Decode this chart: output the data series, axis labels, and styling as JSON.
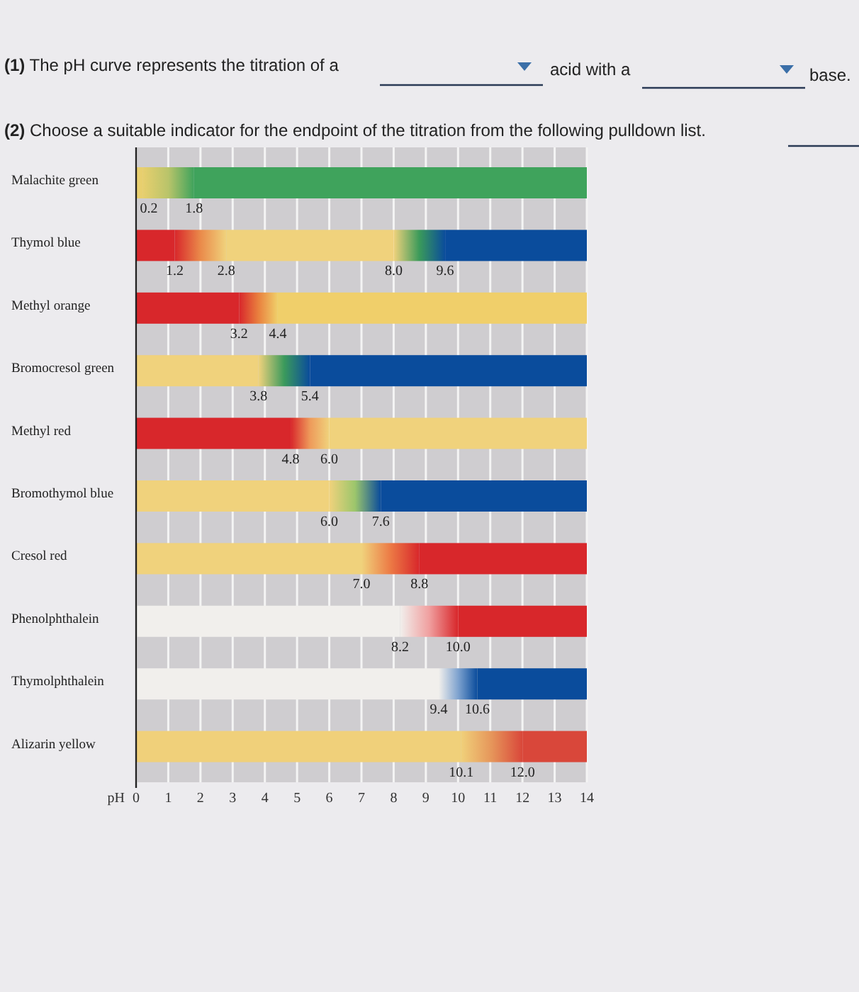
{
  "chart_data": {
    "type": "bar",
    "orientation": "horizontal",
    "stacked": true,
    "categories": [
      "Malachite green",
      "Thymol blue",
      "Methyl orange",
      "Bromocresol green",
      "Methyl red",
      "Bromothymol blue",
      "Cresol red",
      "Phenolphthalein",
      "Thymolphthalein",
      "Alizarin yellow"
    ],
    "series": [
      {
        "values": [
          0.2,
          1.2,
          3.2,
          3.8,
          4.8,
          6.0,
          7.0,
          8.2,
          9.4,
          10.1
        ],
        "colors": [
          "#e8cf6e",
          "#d8272b",
          "#d8272b",
          "#f0d27c",
          "#d8272b",
          "#f0d27c",
          "#f0d27c",
          "#f1efec",
          "#f1efec",
          "#f0d07a"
        ]
      },
      {
        "values": [
          1.6,
          1.6,
          1.2,
          1.6,
          1.2,
          1.6,
          1.8,
          1.8,
          1.2,
          1.9
        ],
        "colors": [
          "#b9c46a",
          "#ea8a4a",
          "#e9803e",
          "#3b9a5c",
          "#ee9a5a",
          "#9cc66c",
          "#ec7a45",
          "#f0a0a0",
          "#7fa3cf",
          "#e6955a"
        ]
      },
      {
        "values": [
          12.2,
          5.2,
          9.6,
          8.6,
          8.0,
          6.4,
          5.2,
          4.0,
          3.4,
          2.0
        ],
        "colors": [
          "#3fa35c",
          "#f0d27c",
          "#f0cf6a",
          "#0a4c9c",
          "#f0d27c",
          "#0a4c9c",
          "#d8272b",
          "#d8272b",
          "#0a4c9c",
          "#d9473a"
        ]
      },
      {
        "values": [
          null,
          1.6,
          null,
          null,
          null,
          null,
          null,
          null,
          null,
          null
        ],
        "colors": [
          null,
          "#3a9a5a",
          null,
          null,
          null,
          null,
          null,
          null,
          null,
          null
        ]
      },
      {
        "values": [
          null,
          4.4,
          null,
          null,
          null,
          null,
          null,
          null,
          null,
          null
        ],
        "colors": [
          null,
          "#0a4c9c",
          null,
          null,
          null,
          null,
          null,
          null,
          null,
          null
        ]
      }
    ],
    "xlabel": "pH",
    "xlim": [
      0,
      14
    ],
    "xticks": [
      0,
      1,
      2,
      3,
      4,
      5,
      6,
      7,
      8,
      9,
      10,
      11,
      12,
      13,
      14
    ],
    "grid": "x",
    "annotations": [
      "(1) The pH curve represents the titration of a",
      "acid with a",
      "base.",
      "(2) Choose a suitable indicator for the endpoint of the titration from the following pulldown list.",
      {
        "text": "0.2",
        "x": 0.2,
        "y": "Malachite green"
      },
      {
        "text": "1.8",
        "x": 1.8,
        "y": "Malachite green"
      },
      {
        "text": "1.2",
        "x": 1.2,
        "y": "Thymol blue"
      },
      {
        "text": "2.8",
        "x": 2.8,
        "y": "Thymol blue"
      },
      {
        "text": "8.0",
        "x": 8.0,
        "y": "Thymol blue"
      },
      {
        "text": "9.6",
        "x": 9.6,
        "y": "Thymol blue"
      },
      {
        "text": "3.2",
        "x": 3.2,
        "y": "Methyl orange"
      },
      {
        "text": "4.4",
        "x": 4.4,
        "y": "Methyl orange"
      },
      {
        "text": "3.8",
        "x": 3.8,
        "y": "Bromocresol green"
      },
      {
        "text": "5.4",
        "x": 5.4,
        "y": "Bromocresol green"
      },
      {
        "text": "4.8",
        "x": 4.8,
        "y": "Methyl red"
      },
      {
        "text": "6.0",
        "x": 6.0,
        "y": "Methyl red"
      },
      {
        "text": "6.0",
        "x": 6.0,
        "y": "Bromothymol blue"
      },
      {
        "text": "7.6",
        "x": 7.6,
        "y": "Bromothymol blue"
      },
      {
        "text": "7.0",
        "x": 7.0,
        "y": "Cresol red"
      },
      {
        "text": "8.8",
        "x": 8.8,
        "y": "Cresol red"
      },
      {
        "text": "8.2",
        "x": 8.2,
        "y": "Phenolphthalein"
      },
      {
        "text": "10.0",
        "x": 10.0,
        "y": "Phenolphthalein"
      },
      {
        "text": "9.4",
        "x": 9.4,
        "y": "Thymolphthalein"
      },
      {
        "text": "10.6",
        "x": 10.6,
        "y": "Thymolphthalein"
      },
      {
        "text": "10.1",
        "x": 10.1,
        "y": "Alizarin yellow"
      },
      {
        "text": "12.0",
        "x": 12.0,
        "y": "Alizarin yellow"
      }
    ]
  }
}
